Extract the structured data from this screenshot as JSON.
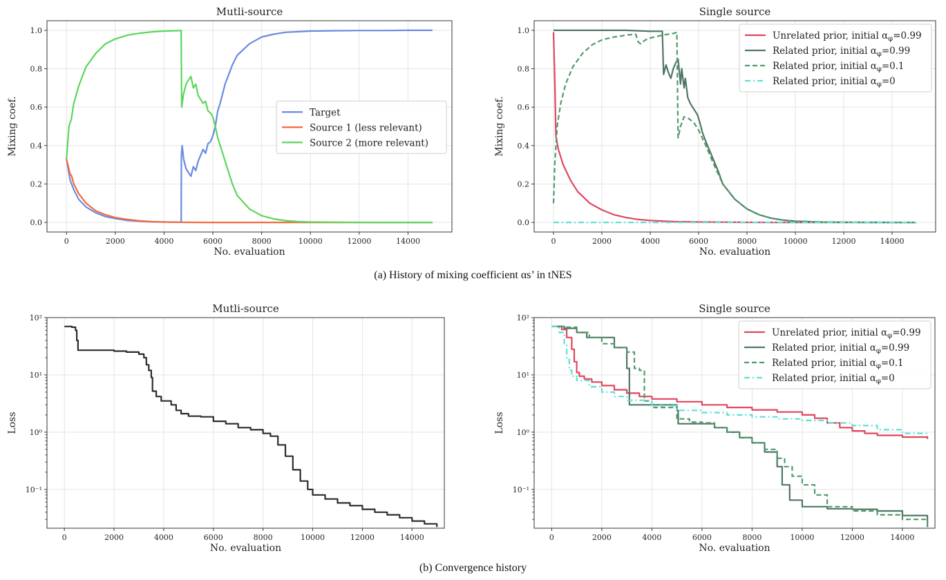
{
  "figure": {
    "caption_a": "(a) History of mixing coefficient αs’ in tNES",
    "caption_b": "(b) Convergence history"
  },
  "chart_data": [
    {
      "id": "a-left",
      "type": "line",
      "title": "Mutli-source",
      "xlabel": "No. evaluation",
      "ylabel": "Mixing coef.",
      "xlim": [
        -800,
        15800
      ],
      "ylim": [
        -0.05,
        1.05
      ],
      "yscale": "linear",
      "xticks": [
        0,
        2000,
        4000,
        6000,
        8000,
        10000,
        12000,
        14000
      ],
      "yticks": [
        0.0,
        0.2,
        0.4,
        0.6,
        0.8,
        1.0
      ],
      "yticklabels": [
        "0.0",
        "0.2",
        "0.4",
        "0.6",
        "0.8",
        "1.0"
      ],
      "grid": true,
      "legend_position": "center-right",
      "series": [
        {
          "name": "Target",
          "color": "#6a89e0",
          "dash": "solid",
          "x": [
            0,
            150,
            300,
            500,
            800,
            1200,
            1600,
            2000,
            2500,
            3000,
            3500,
            4000,
            4500,
            4700,
            4710,
            4740,
            4800,
            4900,
            5000,
            5100,
            5200,
            5300,
            5400,
            5500,
            5600,
            5700,
            5800,
            5900,
            6000,
            6100,
            6200,
            6300,
            6500,
            6800,
            7000,
            7500,
            8000,
            8500,
            9000,
            9500,
            10000,
            11000,
            12000,
            13000,
            14000,
            15000
          ],
          "y": [
            0.33,
            0.22,
            0.17,
            0.12,
            0.08,
            0.05,
            0.03,
            0.02,
            0.01,
            0.006,
            0.003,
            0.002,
            0.001,
            0.001,
            0.35,
            0.4,
            0.33,
            0.28,
            0.26,
            0.24,
            0.29,
            0.27,
            0.32,
            0.35,
            0.38,
            0.36,
            0.41,
            0.42,
            0.45,
            0.5,
            0.58,
            0.62,
            0.72,
            0.82,
            0.87,
            0.93,
            0.965,
            0.98,
            0.99,
            0.993,
            0.996,
            0.998,
            0.999,
            0.999,
            1.0,
            1.0
          ]
        },
        {
          "name": "Source 1 (less relevant)",
          "color": "#f2673a",
          "dash": "solid",
          "x": [
            0,
            150,
            200,
            300,
            500,
            800,
            1200,
            1600,
            2000,
            2500,
            3000,
            3500,
            4000,
            4500,
            5000,
            6000,
            8000,
            10000,
            12000,
            15000
          ],
          "y": [
            0.33,
            0.25,
            0.245,
            0.2,
            0.15,
            0.1,
            0.06,
            0.04,
            0.025,
            0.015,
            0.008,
            0.004,
            0.002,
            0.001,
            0.0005,
            0.0,
            0.0,
            0.0,
            0.0,
            0.0
          ]
        },
        {
          "name": "Source 2 (more relevant)",
          "color": "#5ad65a",
          "dash": "solid",
          "x": [
            0,
            100,
            200,
            300,
            500,
            800,
            1200,
            1600,
            2000,
            2500,
            3000,
            3500,
            4000,
            4500,
            4700,
            4720,
            4800,
            4900,
            5000,
            5100,
            5200,
            5300,
            5400,
            5500,
            5600,
            5700,
            5800,
            5900,
            6000,
            6100,
            6200,
            6400,
            6600,
            6800,
            7000,
            7500,
            8000,
            8500,
            9000,
            9500,
            10000,
            11000,
            12000,
            13000,
            15000
          ],
          "y": [
            0.33,
            0.5,
            0.54,
            0.62,
            0.71,
            0.81,
            0.88,
            0.93,
            0.955,
            0.975,
            0.985,
            0.992,
            0.996,
            0.998,
            0.999,
            0.6,
            0.67,
            0.72,
            0.74,
            0.76,
            0.7,
            0.72,
            0.66,
            0.64,
            0.62,
            0.63,
            0.58,
            0.57,
            0.55,
            0.5,
            0.44,
            0.36,
            0.28,
            0.2,
            0.14,
            0.07,
            0.035,
            0.018,
            0.009,
            0.004,
            0.002,
            0.001,
            0.0005,
            0.0,
            0.0
          ]
        }
      ]
    },
    {
      "id": "a-right",
      "type": "line",
      "title": "Single source",
      "xlabel": "No. evaluation",
      "ylabel": "Mixing coef.",
      "xlim": [
        -800,
        15800
      ],
      "ylim": [
        -0.05,
        1.05
      ],
      "yscale": "linear",
      "xticks": [
        0,
        2000,
        4000,
        6000,
        8000,
        10000,
        12000,
        14000
      ],
      "yticks": [
        0.0,
        0.2,
        0.4,
        0.6,
        0.8,
        1.0
      ],
      "yticklabels": [
        "0.0",
        "0.2",
        "0.4",
        "0.6",
        "0.8",
        "1.0"
      ],
      "grid": true,
      "legend_position": "upper-right",
      "series": [
        {
          "name": "Unrelated prior, initial α_φ=0.99",
          "color": "#e0455c",
          "dash": "solid",
          "x": [
            0,
            50,
            100,
            200,
            400,
            700,
            1000,
            1500,
            2000,
            2500,
            3000,
            3500,
            4000,
            5000,
            6000,
            8000,
            10000,
            12000,
            15000
          ],
          "y": [
            0.99,
            0.75,
            0.45,
            0.38,
            0.3,
            0.22,
            0.16,
            0.1,
            0.065,
            0.04,
            0.025,
            0.015,
            0.01,
            0.004,
            0.002,
            0.0005,
            0.0,
            0.0,
            0.0
          ]
        },
        {
          "name": "Related prior, initial α_φ=0.99",
          "color": "#4e7565",
          "dash": "solid",
          "x": [
            0,
            1000,
            2000,
            3000,
            4000,
            4500,
            4550,
            4650,
            4750,
            4850,
            4950,
            5050,
            5150,
            5250,
            5300,
            5400,
            5450,
            5550,
            5650,
            5750,
            5850,
            5950,
            6050,
            6150,
            6300,
            6500,
            6800,
            7000,
            7500,
            8000,
            8500,
            9000,
            9500,
            10000,
            11000,
            12000,
            13000,
            15000
          ],
          "y": [
            1.0,
            1.0,
            1.0,
            1.0,
            0.995,
            0.995,
            0.77,
            0.82,
            0.78,
            0.75,
            0.8,
            0.83,
            0.85,
            0.72,
            0.8,
            0.7,
            0.75,
            0.65,
            0.62,
            0.6,
            0.58,
            0.56,
            0.52,
            0.47,
            0.42,
            0.36,
            0.27,
            0.2,
            0.12,
            0.07,
            0.04,
            0.022,
            0.012,
            0.006,
            0.002,
            0.001,
            0.0005,
            0.0
          ]
        },
        {
          "name": "Related prior, initial α_φ=0.1",
          "color": "#4f9a6a",
          "dash": "dashed",
          "x": [
            0,
            50,
            150,
            300,
            500,
            800,
            1200,
            1600,
            2000,
            2500,
            3000,
            3400,
            3500,
            3600,
            3800,
            4000,
            4500,
            5000,
            5100,
            5150,
            5250,
            5400,
            5600,
            5800,
            6000,
            6300,
            6600,
            7000,
            7500,
            8000,
            8500,
            9000,
            9500,
            10000,
            11000,
            12000,
            13000,
            15000
          ],
          "y": [
            0.1,
            0.3,
            0.5,
            0.62,
            0.72,
            0.81,
            0.88,
            0.925,
            0.95,
            0.965,
            0.975,
            0.98,
            0.94,
            0.93,
            0.95,
            0.96,
            0.975,
            0.985,
            0.99,
            0.44,
            0.5,
            0.55,
            0.54,
            0.52,
            0.48,
            0.4,
            0.31,
            0.2,
            0.12,
            0.07,
            0.04,
            0.022,
            0.012,
            0.006,
            0.002,
            0.001,
            0.0005,
            0.0
          ]
        },
        {
          "name": "Related prior, initial α_φ=0",
          "color": "#5ce0d4",
          "dash": "dashdot",
          "x": [
            0,
            15000
          ],
          "y": [
            0.0,
            0.0
          ]
        }
      ]
    },
    {
      "id": "b-left",
      "type": "line",
      "title": "Mutli-source",
      "xlabel": "No. evaluation",
      "ylabel": "Loss",
      "xlim": [
        -700,
        15300
      ],
      "ylim": [
        0.021,
        100
      ],
      "yscale": "log",
      "xticks": [
        0,
        2000,
        4000,
        6000,
        8000,
        10000,
        12000,
        14000
      ],
      "yticks": [
        0.1,
        1,
        10,
        100
      ],
      "yticklabels": [
        "10⁻¹",
        "10⁰",
        "10¹",
        "10²"
      ],
      "grid": true,
      "legend_position": "none",
      "series": [
        {
          "name": "",
          "color": "#2b2b2b",
          "dash": "solid",
          "x": [
            0,
            300,
            450,
            500,
            550,
            2000,
            2500,
            3000,
            3200,
            3300,
            3400,
            3500,
            3550,
            3700,
            3900,
            4300,
            4500,
            4700,
            5000,
            5500,
            6000,
            6500,
            7000,
            7500,
            8000,
            8300,
            8600,
            8900,
            9200,
            9500,
            9800,
            10000,
            10500,
            11000,
            11500,
            12000,
            12500,
            13000,
            13500,
            14000,
            14500,
            15000
          ],
          "y": [
            70,
            68,
            60,
            40,
            27,
            26,
            25,
            23,
            20,
            15,
            12,
            9,
            5.2,
            4.2,
            3.5,
            3.0,
            2.4,
            2.1,
            1.9,
            1.85,
            1.55,
            1.4,
            1.2,
            1.1,
            0.95,
            0.85,
            0.6,
            0.38,
            0.22,
            0.14,
            0.1,
            0.08,
            0.068,
            0.058,
            0.052,
            0.045,
            0.04,
            0.036,
            0.032,
            0.028,
            0.025,
            0.022
          ]
        }
      ]
    },
    {
      "id": "b-right",
      "type": "line",
      "title": "Single source",
      "xlabel": "No. evaluation",
      "ylabel": "Loss",
      "xlim": [
        -700,
        15300
      ],
      "ylim": [
        0.021,
        100
      ],
      "yscale": "log",
      "xticks": [
        0,
        2000,
        4000,
        6000,
        8000,
        10000,
        12000,
        14000
      ],
      "yticks": [
        0.1,
        1,
        10,
        100
      ],
      "yticklabels": [
        "10⁻¹",
        "10⁰",
        "10¹",
        "10²"
      ],
      "grid": true,
      "legend_position": "upper-right",
      "series": [
        {
          "name": "Unrelated prior, initial α_φ=0.99",
          "color": "#e0455c",
          "dash": "solid",
          "x": [
            0,
            400,
            600,
            800,
            900,
            1000,
            1100,
            1300,
            1600,
            2000,
            2500,
            3000,
            3500,
            4000,
            5000,
            6000,
            7000,
            8000,
            9000,
            10000,
            10500,
            11000,
            11500,
            12000,
            12500,
            13000,
            14000,
            15000
          ],
          "y": [
            70,
            62,
            45,
            28,
            17,
            11,
            9.5,
            8.5,
            7.5,
            6.5,
            5.5,
            4.8,
            4.2,
            3.8,
            3.4,
            3.0,
            2.7,
            2.45,
            2.25,
            2.0,
            1.75,
            1.45,
            1.2,
            1.05,
            0.95,
            0.88,
            0.82,
            0.76
          ]
        },
        {
          "name": "Related prior, initial α_φ=0.99",
          "color": "#4e7565",
          "dash": "solid",
          "x": [
            0,
            500,
            1000,
            1400,
            2000,
            2500,
            2900,
            3000,
            3100,
            3600,
            3700,
            4400,
            5000,
            5050,
            6000,
            6500,
            7000,
            7500,
            8000,
            8500,
            9000,
            9200,
            9500,
            10000,
            11000,
            12000,
            13000,
            14000,
            15000
          ],
          "y": [
            70,
            65,
            55,
            45,
            45,
            30,
            30,
            13,
            3.0,
            3.0,
            3.0,
            3.0,
            2.4,
            1.4,
            1.4,
            1.2,
            1.0,
            0.8,
            0.65,
            0.45,
            0.25,
            0.12,
            0.065,
            0.05,
            0.046,
            0.045,
            0.042,
            0.035,
            0.022
          ]
        },
        {
          "name": "Related prior, initial α_φ=0.1",
          "color": "#4f9a6a",
          "dash": "dashed",
          "x": [
            0,
            500,
            1000,
            1500,
            2000,
            2500,
            3000,
            3300,
            3500,
            3700,
            4000,
            4500,
            5000,
            5500,
            6000,
            6500,
            7000,
            7500,
            8000,
            8500,
            9000,
            9300,
            9600,
            10000,
            10500,
            11000,
            12000,
            13000,
            14000,
            15000
          ],
          "y": [
            70,
            68,
            55,
            45,
            35,
            30,
            25,
            13,
            12,
            3.5,
            2.7,
            2.7,
            1.7,
            1.5,
            1.45,
            1.2,
            1.0,
            0.8,
            0.65,
            0.5,
            0.35,
            0.25,
            0.17,
            0.12,
            0.08,
            0.05,
            0.042,
            0.036,
            0.03,
            0.02
          ]
        },
        {
          "name": "Related prior, initial α_φ=0",
          "color": "#5ce0d4",
          "dash": "dashdot",
          "x": [
            0,
            300,
            500,
            600,
            700,
            800,
            1000,
            1500,
            2000,
            2500,
            3000,
            4000,
            5000,
            6000,
            7000,
            8000,
            9000,
            10000,
            11000,
            12000,
            13000,
            14000,
            15000
          ],
          "y": [
            70,
            55,
            35,
            20,
            12,
            9.5,
            8.0,
            6.2,
            5.0,
            4.2,
            3.6,
            2.9,
            2.4,
            2.2,
            2.0,
            1.85,
            1.7,
            1.6,
            1.45,
            1.3,
            1.1,
            0.95,
            0.85
          ]
        }
      ]
    }
  ]
}
